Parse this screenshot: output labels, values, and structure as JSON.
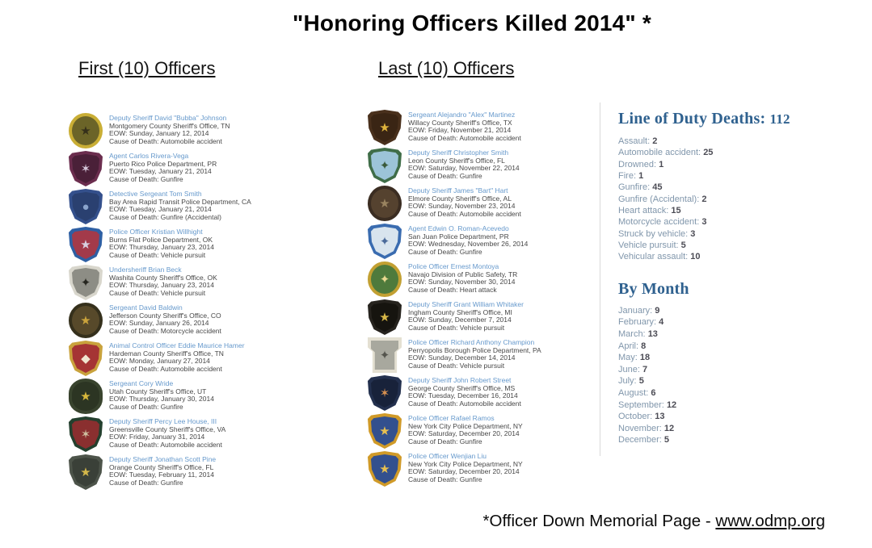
{
  "page": {
    "title": "\"Honoring Officers Killed 2014\" *",
    "footer": {
      "prefix": "*Officer Down Memorial Page - ",
      "link": "www.odmp.org"
    }
  },
  "colors": {
    "name_link": "#6699cc",
    "body_text": "#474747",
    "sidebar_heading": "#2f618f",
    "stat_label": "#8096ab",
    "stat_value": "#4c4c55",
    "divider": "#d9d9d9"
  },
  "columns": {
    "first": {
      "heading": "First (10) Officers",
      "officers": [
        {
          "name": "Deputy Sheriff David \"Bubba\" Johnson",
          "agency": "Montgomery County Sheriff's Office, TN",
          "eow": "EOW: Sunday, January 12, 2014",
          "cause": "Cause of Death: Automobile accident",
          "badge": {
            "icon": "agency-patch-icon",
            "shape": "circle",
            "outer": "#c9ae35",
            "inner": "#6b6428",
            "emblem": "★",
            "emblem_color": "#35301a"
          }
        },
        {
          "name": "Agent Carlos Rivera-Vega",
          "agency": "Puerto Rico Police Department, PR",
          "eow": "EOW: Tuesday, January 21, 2014",
          "cause": "Cause of Death: Gunfire",
          "badge": {
            "icon": "agency-patch-icon",
            "shape": "shield",
            "outer": "#6b2d4e",
            "inner": "#4a2038",
            "emblem": "✶",
            "emblem_color": "#d6c8da"
          }
        },
        {
          "name": "Detective Sergeant Tom Smith",
          "agency": "Bay Area Rapid Transit Police Department, CA",
          "eow": "EOW: Tuesday, January 21, 2014",
          "cause": "Cause of Death: Gunfire (Accidental)",
          "badge": {
            "icon": "agency-patch-icon",
            "shape": "shield",
            "outer": "#34508c",
            "inner": "#2a4070",
            "emblem": "●",
            "emblem_color": "#8aa4cc"
          }
        },
        {
          "name": "Police Officer Kristian Willhight",
          "agency": "Burns Flat Police Department, OK",
          "eow": "EOW: Thursday, January 23, 2014",
          "cause": "Cause of Death: Vehicle pursuit",
          "badge": {
            "icon": "agency-patch-icon",
            "shape": "shield",
            "outer": "#2e5fa3",
            "inner": "#a33a4a",
            "emblem": "★",
            "emblem_color": "#d8d0e0"
          }
        },
        {
          "name": "Undersheriff Brian Beck",
          "agency": "Washita County Sheriff's Office, OK",
          "eow": "EOW: Thursday, January 23, 2014",
          "cause": "Cause of Death: Vehicle pursuit",
          "badge": {
            "icon": "agency-patch-icon",
            "shape": "shield",
            "outer": "#d8d6cc",
            "inner": "#8d8d85",
            "emblem": "✦",
            "emblem_color": "#26261f"
          }
        },
        {
          "name": "Sergeant David Baldwin",
          "agency": "Jefferson County Sheriff's Office, CO",
          "eow": "EOW: Sunday, January 26, 2014",
          "cause": "Cause of Death: Motorcycle accident",
          "badge": {
            "icon": "agency-patch-icon",
            "shape": "circle",
            "outer": "#35301c",
            "inner": "#57492a",
            "emblem": "★",
            "emblem_color": "#caa33c"
          }
        },
        {
          "name": "Animal Control Officer Eddie Maurice Hamer",
          "agency": "Hardeman County Sheriff's Office, TN",
          "eow": "EOW: Monday, January 27, 2014",
          "cause": "Cause of Death: Automobile accident",
          "badge": {
            "icon": "agency-patch-icon",
            "shape": "shield",
            "outer": "#c9a23c",
            "inner": "#a53434",
            "emblem": "◆",
            "emblem_color": "#f0e6d0"
          }
        },
        {
          "name": "Sergeant Cory Wride",
          "agency": "Utah County Sheriff's Office, UT",
          "eow": "EOW: Thursday, January 30, 2014",
          "cause": "Cause of Death: Gunfire",
          "badge": {
            "icon": "agency-patch-icon",
            "shape": "oval",
            "outer": "#39442e",
            "inner": "#2c3523",
            "emblem": "★",
            "emblem_color": "#d8b83c"
          }
        },
        {
          "name": "Deputy Sheriff Percy Lee House, III",
          "agency": "Greensville County Sheriff's Office, VA",
          "eow": "EOW: Friday, January 31, 2014",
          "cause": "Cause of Death: Automobile accident",
          "badge": {
            "icon": "agency-patch-icon",
            "shape": "shield",
            "outer": "#24402e",
            "inner": "#8a2f2f",
            "emblem": "✶",
            "emblem_color": "#cfc0a0"
          }
        },
        {
          "name": "Deputy Sheriff Jonathan Scott Pine",
          "agency": "Orange County Sheriff's Office, FL",
          "eow": "EOW: Tuesday, February 11, 2014",
          "cause": "Cause of Death: Gunfire",
          "badge": {
            "icon": "agency-patch-icon",
            "shape": "shield",
            "outer": "#4d544a",
            "inner": "#3a4038",
            "emblem": "★",
            "emblem_color": "#d4b84a"
          }
        }
      ]
    },
    "last": {
      "heading": "Last (10) Officers",
      "officers": [
        {
          "name": "Sergeant Alejandro \"Alex\" Martinez",
          "agency": "Willacy County Sheriff's Office, TX",
          "eow": "EOW: Friday, November 21, 2014",
          "cause": "Cause of Death: Automobile accident",
          "badge": {
            "icon": "agency-patch-icon",
            "shape": "shield",
            "outer": "#49301c",
            "inner": "#3a2514",
            "emblem": "★",
            "emblem_color": "#e0b43c"
          }
        },
        {
          "name": "Deputy Sheriff Christopher Smith",
          "agency": "Leon County Sheriff's Office, FL",
          "eow": "EOW: Saturday, November 22, 2014",
          "cause": "Cause of Death: Gunfire",
          "badge": {
            "icon": "agency-patch-icon",
            "shape": "shield",
            "outer": "#3f6d48",
            "inner": "#9cc4d8",
            "emblem": "✦",
            "emblem_color": "#3a5a3a"
          }
        },
        {
          "name": "Deputy Sheriff James \"Bart\" Hart",
          "agency": "Elmore County Sheriff's Office, AL",
          "eow": "EOW: Sunday, November 23, 2014",
          "cause": "Cause of Death: Automobile accident",
          "badge": {
            "icon": "agency-patch-icon",
            "shape": "circle",
            "outer": "#3b2d22",
            "inner": "#55422f",
            "emblem": "★",
            "emblem_color": "#9a8460"
          }
        },
        {
          "name": "Agent Edwin O. Roman-Acevedo",
          "agency": "San Juan Police Department, PR",
          "eow": "EOW: Wednesday, November 26, 2014",
          "cause": "Cause of Death: Gunfire",
          "badge": {
            "icon": "agency-patch-icon",
            "shape": "shield",
            "outer": "#3a6cb0",
            "inner": "#d8e4ee",
            "emblem": "✦",
            "emblem_color": "#4a6a9a"
          }
        },
        {
          "name": "Police Officer Ernest Montoya",
          "agency": "Navajo Division of Public Safety, TR",
          "eow": "EOW: Sunday, November 30, 2014",
          "cause": "Cause of Death: Heart attack",
          "badge": {
            "icon": "agency-patch-icon",
            "shape": "circle",
            "outer": "#c2a032",
            "inner": "#4e7a3c",
            "emblem": "✦",
            "emblem_color": "#e8d890"
          }
        },
        {
          "name": "Deputy Sheriff Grant William Whitaker",
          "agency": "Ingham County Sheriff's Office, MI",
          "eow": "EOW: Sunday, December 7, 2014",
          "cause": "Cause of Death: Vehicle pursuit",
          "badge": {
            "icon": "agency-patch-icon",
            "shape": "shield",
            "outer": "#26231e",
            "inner": "#16140f",
            "emblem": "★",
            "emblem_color": "#d8b848"
          }
        },
        {
          "name": "Police Officer Richard Anthony Champion",
          "agency": "Perryopolis Borough Police Department, PA",
          "eow": "EOW: Sunday, December 14, 2014",
          "cause": "Cause of Death: Vehicle pursuit",
          "badge": {
            "icon": "agency-patch-icon",
            "shape": "keystone",
            "outer": "#e4e0d2",
            "inner": "#a8a89e",
            "emblem": "✦",
            "emblem_color": "#55554e"
          }
        },
        {
          "name": "Deputy Sheriff John Robert Street",
          "agency": "George County Sheriff's Office, MS",
          "eow": "EOW: Tuesday, December 16, 2014",
          "cause": "Cause of Death: Automobile accident",
          "badge": {
            "icon": "agency-patch-icon",
            "shape": "shield",
            "outer": "#23304e",
            "inner": "#18223a",
            "emblem": "✶",
            "emblem_color": "#d89050"
          }
        },
        {
          "name": "Police Officer Rafael Ramos",
          "agency": "New York City Police Department, NY",
          "eow": "EOW: Saturday, December 20, 2014",
          "cause": "Cause of Death: Gunfire",
          "badge": {
            "icon": "agency-patch-icon",
            "shape": "shield",
            "outer": "#d09a28",
            "inner": "#33508e",
            "emblem": "★",
            "emblem_color": "#e8c050"
          }
        },
        {
          "name": "Police Officer Wenjian Liu",
          "agency": "New York City Police Department, NY",
          "eow": "EOW: Saturday, December 20, 2014",
          "cause": "Cause of Death: Gunfire",
          "badge": {
            "icon": "agency-patch-icon",
            "shape": "shield",
            "outer": "#d09a28",
            "inner": "#33508e",
            "emblem": "★",
            "emblem_color": "#e8c050"
          }
        }
      ]
    }
  },
  "sidebar": {
    "line_of_duty": {
      "title": "Line of Duty Deaths:",
      "total": "112",
      "causes": [
        {
          "label": "Assault:",
          "value": "2"
        },
        {
          "label": "Automobile accident:",
          "value": "25"
        },
        {
          "label": "Drowned:",
          "value": "1"
        },
        {
          "label": "Fire:",
          "value": "1"
        },
        {
          "label": "Gunfire:",
          "value": "45"
        },
        {
          "label": "Gunfire (Accidental):",
          "value": "2"
        },
        {
          "label": "Heart attack:",
          "value": "15"
        },
        {
          "label": "Motorcycle accident:",
          "value": "3"
        },
        {
          "label": "Struck by vehicle:",
          "value": "3"
        },
        {
          "label": "Vehicle pursuit:",
          "value": "5"
        },
        {
          "label": "Vehicular assault:",
          "value": "10"
        }
      ]
    },
    "by_month": {
      "title": "By Month",
      "months": [
        {
          "label": "January:",
          "value": "9"
        },
        {
          "label": "February:",
          "value": "4"
        },
        {
          "label": "March:",
          "value": "13"
        },
        {
          "label": "April:",
          "value": "8"
        },
        {
          "label": "May:",
          "value": "18"
        },
        {
          "label": "June:",
          "value": "7"
        },
        {
          "label": "July:",
          "value": "5"
        },
        {
          "label": "August:",
          "value": "6"
        },
        {
          "label": "September:",
          "value": "12"
        },
        {
          "label": "October:",
          "value": "13"
        },
        {
          "label": "November:",
          "value": "12"
        },
        {
          "label": "December:",
          "value": "5"
        }
      ]
    }
  }
}
